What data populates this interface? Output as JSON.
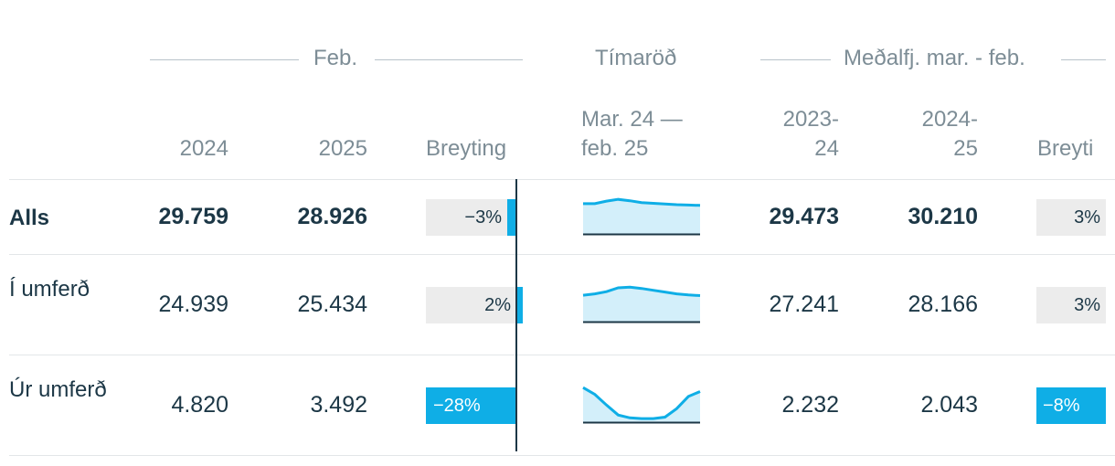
{
  "groups": {
    "feb": "Feb.",
    "timeseries": "Tímaröð",
    "average": "Meðalfj. mar. - feb."
  },
  "columns": {
    "y2024": "2024",
    "y2025": "2025",
    "change": "Breyting",
    "period_line1": "Mar. 24 —",
    "period_line2": "feb. 25",
    "avg1_line1": "2023-",
    "avg1_line2": "24",
    "avg2_line1": "2024-",
    "avg2_line2": "25",
    "avg_change": "Breyti"
  },
  "rows": [
    {
      "label": "Alls",
      "v2024": "29.759",
      "v2025": "28.926",
      "change_label": "−3%",
      "change_value": -3,
      "spark": [
        0.85,
        0.85,
        0.92,
        0.97,
        0.93,
        0.88,
        0.86,
        0.84,
        0.82,
        0.81,
        0.8
      ],
      "avg1": "29.473",
      "avg2": "30.210",
      "avg_change_label": "3%",
      "avg_change_value": 3
    },
    {
      "label": "Í umferð",
      "v2024": "24.939",
      "v2025": "25.434",
      "change_label": "2%",
      "change_value": 2,
      "spark": [
        0.74,
        0.78,
        0.84,
        0.95,
        0.97,
        0.93,
        0.88,
        0.83,
        0.78,
        0.75,
        0.73
      ],
      "avg1": "27.241",
      "avg2": "28.166",
      "avg_change_label": "3%",
      "avg_change_value": 3
    },
    {
      "label": "Úr umferð",
      "v2024": "4.820",
      "v2025": "3.492",
      "change_label": "−28%",
      "change_value": -28,
      "spark": [
        0.97,
        0.78,
        0.48,
        0.2,
        0.12,
        0.1,
        0.1,
        0.14,
        0.38,
        0.72,
        0.86
      ],
      "avg1": "2.232",
      "avg2": "2.043",
      "avg_change_label": "−8%",
      "avg_change_value": -8
    }
  ],
  "colors": {
    "accent": "#0faee6",
    "spark_fill": "#d3effa",
    "bar_bg": "#ececec",
    "text": "#1c3746",
    "muted": "#7d8d96"
  }
}
